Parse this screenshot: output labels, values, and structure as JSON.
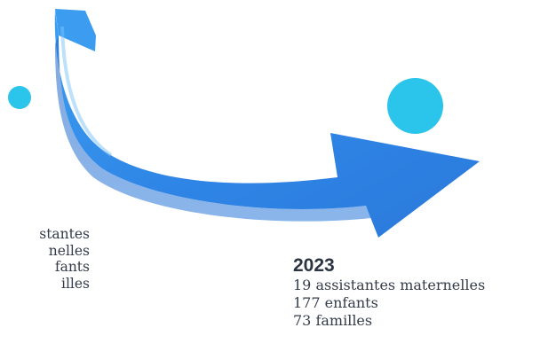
{
  "left": {
    "lines": [
      "stantes",
      "nelles",
      "fants",
      "illes"
    ]
  },
  "right": {
    "year": "2023",
    "lines": [
      "19 assistantes maternelles",
      "177 enfants",
      "73 familles"
    ]
  },
  "colors": {
    "dot": "#2bc4ea",
    "arrow": "#2f86e6",
    "text": "#333c4a"
  },
  "icons": {
    "arrow": "curved-arrow-icon"
  }
}
